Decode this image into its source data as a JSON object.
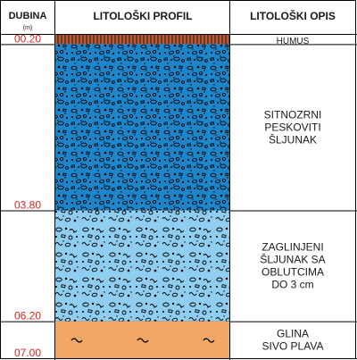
{
  "header": {
    "depth_label": "DUBINA",
    "depth_unit": "(m)",
    "profile_label": "LITOLOŠKI PROFIL",
    "description_label": "LITOLOŠKI OPIS"
  },
  "layers": [
    {
      "top": 0.0,
      "bottom": 0.2,
      "bottom_label": "00.20",
      "description": [
        "HUMUS"
      ],
      "fill": "#b85a3c",
      "pattern": "humus"
    },
    {
      "top": 0.2,
      "bottom": 3.8,
      "bottom_label": "03.80",
      "description": [
        "SITNOZRNI",
        "PESKOVITI",
        "ŠLJUNAK"
      ],
      "fill": "#1d85c9",
      "pattern": "gravel"
    },
    {
      "top": 3.8,
      "bottom": 6.2,
      "bottom_label": "06.20",
      "description": [
        "ZAGLINJENI",
        "ŠLJUNAK SA",
        "OBLUTCIMA",
        "DO 3 cm"
      ],
      "fill": "#8fcdf1",
      "pattern": "clayey-gravel"
    },
    {
      "top": 6.2,
      "bottom": 7.0,
      "bottom_label": "07.00",
      "description": [
        "GLINA",
        "SIVO PLAVA"
      ],
      "fill": "#f2a766",
      "pattern": "clay"
    }
  ],
  "colors": {
    "depth_label": "#d8231d",
    "grid_line": "#000000",
    "header_text": "#1a1a1a"
  }
}
